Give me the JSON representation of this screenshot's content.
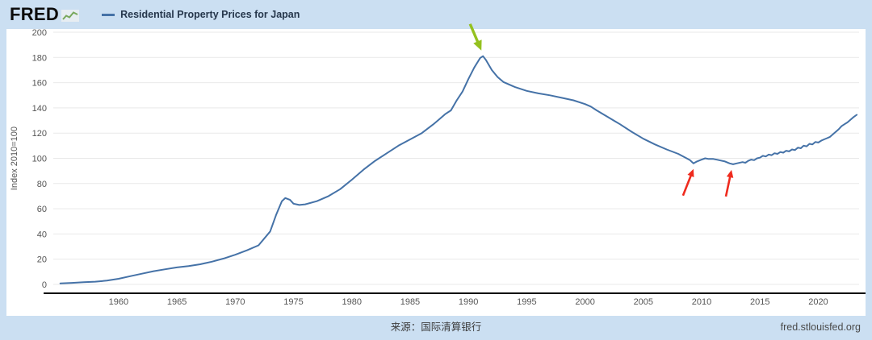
{
  "header": {
    "logo": "FRED",
    "legend_label": "Residential Property Prices for Japan"
  },
  "footer": {
    "source": "来源：国际清算银行",
    "site": "fred.stlouisfed.org"
  },
  "colors": {
    "frame": "#cbdff2",
    "line": "#4572a7",
    "grid": "#e9e9e9",
    "axis_text": "#555555",
    "baseline": "#000000",
    "peak_arrow": "#94c11f",
    "trough_arrow": "#ef2b1e"
  },
  "chart_data": {
    "type": "line",
    "title": "Residential Property Prices for Japan",
    "xlabel": "",
    "ylabel": "Index 2010=100",
    "ylim": [
      0,
      200
    ],
    "yticks": [
      0,
      20,
      40,
      60,
      80,
      100,
      120,
      140,
      160,
      180,
      200
    ],
    "xlim": [
      1954.4,
      2023.5
    ],
    "xticks": [
      1960,
      1965,
      1970,
      1975,
      1980,
      1985,
      1990,
      1995,
      2000,
      2005,
      2010,
      2015,
      2020
    ],
    "grid": "horizontal",
    "legend_position": "top-left",
    "series": [
      {
        "name": "Residential Property Prices for Japan",
        "color": "#4572a7",
        "points": [
          [
            1955,
            0.8
          ],
          [
            1956,
            1.2
          ],
          [
            1957,
            1.7
          ],
          [
            1958,
            2.2
          ],
          [
            1959,
            3
          ],
          [
            1960,
            4.5
          ],
          [
            1961,
            6.5
          ],
          [
            1962,
            8.5
          ],
          [
            1963,
            10.5
          ],
          [
            1964,
            12
          ],
          [
            1965,
            13.5
          ],
          [
            1966,
            14.5
          ],
          [
            1967,
            16
          ],
          [
            1968,
            18
          ],
          [
            1969,
            20.5
          ],
          [
            1970,
            23.5
          ],
          [
            1971,
            27
          ],
          [
            1972,
            31
          ],
          [
            1973,
            42
          ],
          [
            1973.5,
            55
          ],
          [
            1974,
            66
          ],
          [
            1974.3,
            68.5
          ],
          [
            1974.7,
            67
          ],
          [
            1975,
            64
          ],
          [
            1975.5,
            63
          ],
          [
            1976,
            63.5
          ],
          [
            1977,
            66
          ],
          [
            1978,
            70
          ],
          [
            1979,
            75.5
          ],
          [
            1980,
            83
          ],
          [
            1981,
            91
          ],
          [
            1982,
            98
          ],
          [
            1983,
            104
          ],
          [
            1984,
            110
          ],
          [
            1985,
            115
          ],
          [
            1986,
            120
          ],
          [
            1987,
            127
          ],
          [
            1987.5,
            131
          ],
          [
            1988,
            135
          ],
          [
            1988.5,
            138
          ],
          [
            1989,
            146
          ],
          [
            1989.5,
            153
          ],
          [
            1990,
            163
          ],
          [
            1990.5,
            172
          ],
          [
            1991,
            179.5
          ],
          [
            1991.25,
            181
          ],
          [
            1991.5,
            178
          ],
          [
            1992,
            170
          ],
          [
            1992.5,
            164.5
          ],
          [
            1993,
            160.5
          ],
          [
            1994,
            156.5
          ],
          [
            1995,
            153.5
          ],
          [
            1996,
            151.5
          ],
          [
            1997,
            150
          ],
          [
            1998,
            148
          ],
          [
            1999,
            146
          ],
          [
            2000,
            143
          ],
          [
            2000.5,
            141
          ],
          [
            2001,
            138
          ],
          [
            2002,
            132.5
          ],
          [
            2003,
            127
          ],
          [
            2004,
            121
          ],
          [
            2005,
            115.5
          ],
          [
            2006,
            111
          ],
          [
            2007,
            107
          ],
          [
            2008,
            103.5
          ],
          [
            2008.5,
            101
          ],
          [
            2009,
            98.5
          ],
          [
            2009.3,
            96
          ],
          [
            2009.6,
            97.5
          ],
          [
            2010,
            99
          ],
          [
            2010.3,
            100
          ],
          [
            2010.6,
            99.5
          ],
          [
            2011,
            99.5
          ],
          [
            2011.5,
            98.5
          ],
          [
            2012,
            97.5
          ],
          [
            2012.4,
            96
          ],
          [
            2012.7,
            95.3
          ],
          [
            2013,
            96
          ],
          [
            2013.5,
            97
          ],
          [
            2013.75,
            96.5
          ],
          [
            2014,
            98
          ],
          [
            2014.25,
            99
          ],
          [
            2014.5,
            98.5
          ],
          [
            2014.75,
            100
          ],
          [
            2015,
            100.5
          ],
          [
            2015.25,
            102
          ],
          [
            2015.5,
            101.5
          ],
          [
            2015.75,
            103
          ],
          [
            2016,
            102.5
          ],
          [
            2016.25,
            104
          ],
          [
            2016.5,
            103.5
          ],
          [
            2016.75,
            105
          ],
          [
            2017,
            104.5
          ],
          [
            2017.25,
            106
          ],
          [
            2017.5,
            105.5
          ],
          [
            2017.75,
            107
          ],
          [
            2018,
            106.5
          ],
          [
            2018.25,
            108.5
          ],
          [
            2018.5,
            108
          ],
          [
            2018.75,
            110
          ],
          [
            2019,
            109.5
          ],
          [
            2019.25,
            111.5
          ],
          [
            2019.5,
            111
          ],
          [
            2019.75,
            113
          ],
          [
            2020,
            112.5
          ],
          [
            2020.25,
            114
          ],
          [
            2020.5,
            115
          ],
          [
            2020.75,
            116
          ],
          [
            2021,
            117
          ],
          [
            2021.25,
            119
          ],
          [
            2021.5,
            121
          ],
          [
            2021.75,
            123
          ],
          [
            2022,
            125.5
          ],
          [
            2022.25,
            127
          ],
          [
            2022.5,
            128.5
          ],
          [
            2022.75,
            130.5
          ],
          [
            2023,
            132.5
          ],
          [
            2023.3,
            134.5
          ]
        ]
      }
    ],
    "annotations": [
      {
        "name": "peak-arrow",
        "color": "#94c11f",
        "x": 1991.25,
        "y": 181,
        "head_dx": -2,
        "head_dy": -7,
        "tail_dx": -16,
        "tail_dy": -40,
        "width": 3.4
      },
      {
        "name": "trough-arrow-1",
        "color": "#ef2b1e",
        "x": 2009.3,
        "y": 96,
        "head_dx": 0,
        "head_dy": 7,
        "tail_dx": -13,
        "tail_dy": 40,
        "width": 2.6
      },
      {
        "name": "trough-arrow-2",
        "color": "#ef2b1e",
        "x": 2012.7,
        "y": 95.3,
        "head_dx": -2,
        "head_dy": 7,
        "tail_dx": -9,
        "tail_dy": 40,
        "width": 2.6
      }
    ]
  }
}
